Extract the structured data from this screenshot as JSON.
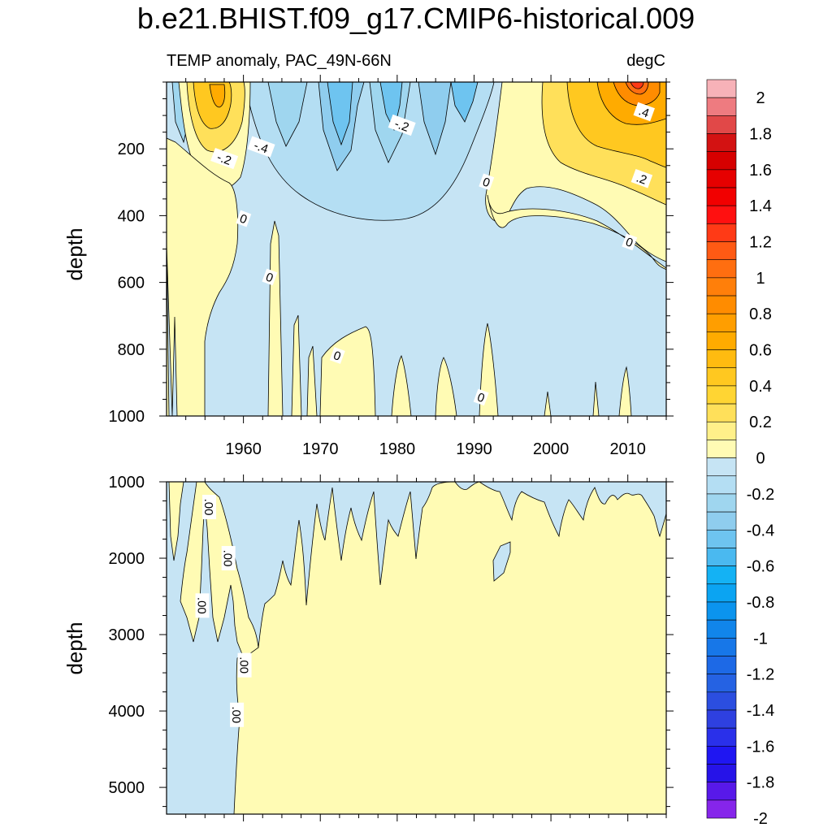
{
  "chart_data": {
    "type": "contour",
    "title": "b.e21.BHIST.f09_g17.CMIP6-historical.009",
    "subtitle_left": "TEMP anomaly, PAC_49N-66N",
    "subtitle_right": "degC",
    "variable": "TEMP anomaly",
    "units": "degC",
    "xlim": [
      1950,
      2015
    ],
    "x_ticks": [
      1960,
      1970,
      1980,
      1990,
      2000,
      2010
    ],
    "x_tick_labels": [
      "1960",
      "1970",
      "1980",
      "1990",
      "2000",
      "2010"
    ],
    "panels": [
      {
        "name": "upper",
        "ylabel": "depth",
        "ylim": [
          0,
          1000
        ],
        "y_ticks": [
          200,
          400,
          600,
          800,
          1000
        ],
        "y_tick_labels": [
          "200",
          "400",
          "600",
          "800",
          "1000"
        ],
        "contour_labels": [
          {
            "text": "0",
            "x": 1960,
            "depth": 410
          },
          {
            "text": "0",
            "x": 1963.4,
            "depth": 585
          },
          {
            "text": "0",
            "x": 1972.2,
            "depth": 820
          },
          {
            "text": "-.2",
            "x": 1957.5,
            "depth": 230
          },
          {
            "text": "-.4",
            "x": 1962.3,
            "depth": 195
          },
          {
            "text": "-.2",
            "x": 1980.6,
            "depth": 130
          },
          {
            "text": "0",
            "x": 1991.6,
            "depth": 300
          },
          {
            "text": "0",
            "x": 1990.9,
            "depth": 945
          },
          {
            "text": ".4",
            "x": 2012.1,
            "depth": 90
          },
          {
            "text": ".2",
            "x": 2011.8,
            "depth": 290
          },
          {
            "text": "0",
            "x": 2010.2,
            "depth": 480
          }
        ]
      },
      {
        "name": "lower",
        "ylabel": "depth",
        "ylim": [
          1000,
          5350
        ],
        "y_ticks": [
          1000,
          2000,
          3000,
          4000,
          5000
        ],
        "y_tick_labels": [
          "1000",
          "2000",
          "3000",
          "4000",
          "5000"
        ],
        "contour_labels": [
          {
            "text": ".00",
            "x": 1955.5,
            "depth": 1330
          },
          {
            "text": ".00",
            "x": 1958.0,
            "depth": 2000
          },
          {
            "text": ".00",
            "x": 1954.6,
            "depth": 2620
          },
          {
            "text": ".00",
            "x": 1960.1,
            "depth": 3400
          },
          {
            "text": ".00",
            "x": 1959.1,
            "depth": 4050
          }
        ]
      }
    ],
    "colorbar": {
      "levels": [
        -2,
        -1.9,
        -1.8,
        -1.7,
        -1.6,
        -1.5,
        -1.4,
        -1.3,
        -1.2,
        -1.1,
        -1,
        -0.9,
        -0.8,
        -0.7,
        -0.6,
        -0.5,
        -0.4,
        -0.3,
        -0.2,
        -0.1,
        0,
        0.1,
        0.2,
        0.3,
        0.4,
        0.5,
        0.6,
        0.7,
        0.8,
        0.9,
        1,
        1.1,
        1.2,
        1.3,
        1.4,
        1.5,
        1.6,
        1.7,
        1.8,
        1.9,
        2
      ],
      "labels": [
        "2",
        "1.8",
        "1.6",
        "1.4",
        "1.2",
        "1",
        "0.8",
        "0.6",
        "0.4",
        "0.2",
        "0",
        "-0.2",
        "-0.4",
        "-0.6",
        "-0.8",
        "-1",
        "-1.2",
        "-1.4",
        "-1.6",
        "-1.8",
        "-2"
      ],
      "colors_top_to_bottom": [
        "#f7b2b8",
        "#ee7b80",
        "#e14848",
        "#d31212",
        "#d60000",
        "#e60000",
        "#f20000",
        "#ff1010",
        "#ff3a16",
        "#ff5a14",
        "#ff6e10",
        "#ff7f0a",
        "#ff8c00",
        "#ff9e00",
        "#ffab00",
        "#ffbb10",
        "#ffc820",
        "#ffd533",
        "#ffe05a",
        "#fff08a",
        "#fffbb4",
        "#c6e4f4",
        "#b4def3",
        "#9fd6ef",
        "#8fcdee",
        "#6ec4f0",
        "#4ab9f0",
        "#14b2f4",
        "#0ba4f2",
        "#0b94ee",
        "#1185ea",
        "#1777e8",
        "#1d69e6",
        "#2562e3",
        "#2b4ee0",
        "#2e40e0",
        "#2a30ea",
        "#1f16f2",
        "#2613e8",
        "#5819e9",
        "#8625ea"
      ]
    },
    "colors": {
      "zero_to_minus_02": "#c6e4f4",
      "zero_to_plus_02": "#fffbb4",
      "minus_02_to_04": "#b4def3",
      "plus_02_to_04": "#ffe05a",
      "plus_04_to_06": "#ffc820"
    }
  }
}
